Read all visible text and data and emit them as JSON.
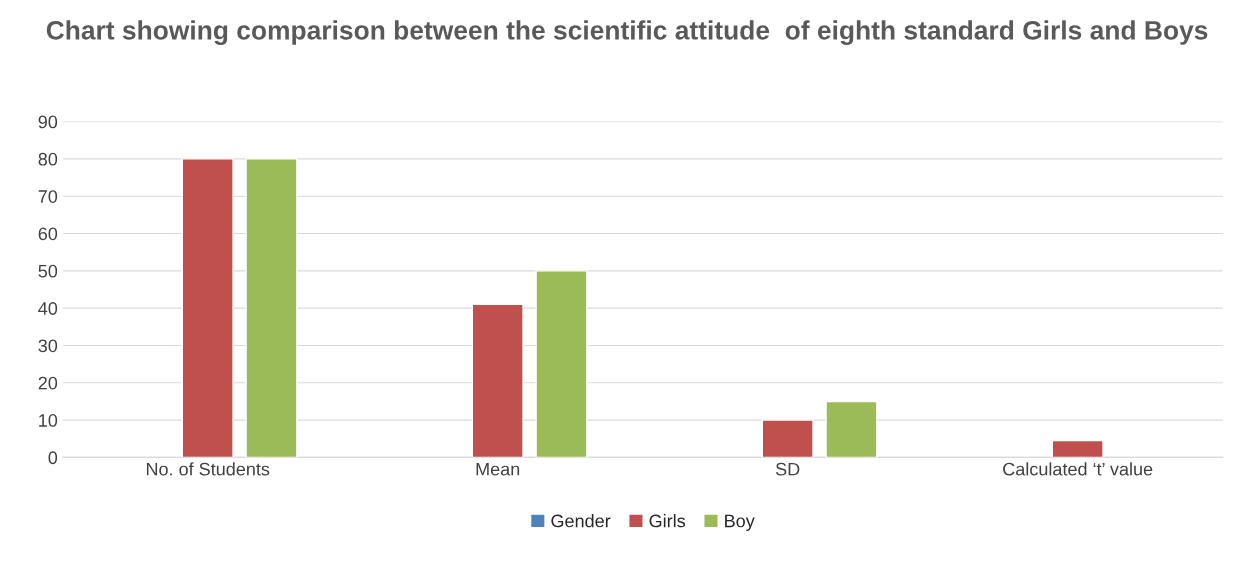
{
  "chart_data": {
    "type": "bar",
    "title": "Chart showing comparison between the scientific attitude  of eighth standard Girls and Boys",
    "categories": [
      "No. of Students",
      "Mean",
      "SD",
      "Calculated ‘t’ value"
    ],
    "series": [
      {
        "name": "Gender",
        "color": "#4f81bd",
        "values": [
          null,
          null,
          null,
          null
        ]
      },
      {
        "name": "Girls",
        "color": "#c0504d",
        "values": [
          80,
          41,
          10,
          4.5
        ]
      },
      {
        "name": "Boy",
        "color": "#9bbb59",
        "values": [
          80,
          50,
          15,
          null
        ]
      }
    ],
    "ylim": [
      0,
      90
    ],
    "yticks": [
      0,
      10,
      20,
      30,
      40,
      50,
      60,
      70,
      80,
      90
    ],
    "grid": "y",
    "legend": "bottom"
  }
}
